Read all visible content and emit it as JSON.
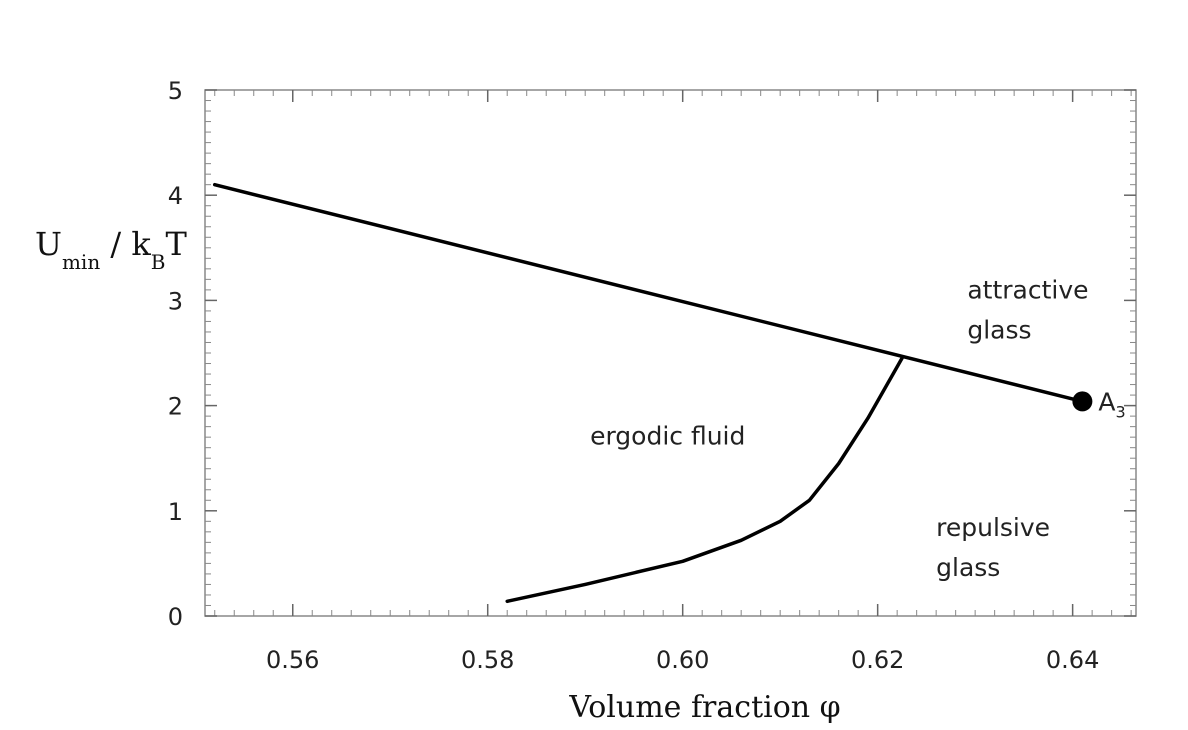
{
  "chart_data": {
    "type": "line",
    "xlabel": "Volume fraction φ",
    "ylabel": {
      "parts": [
        "U",
        "min",
        " / k",
        "B",
        "T"
      ]
    },
    "xlim": [
      0.551,
      0.6465
    ],
    "ylim": [
      0,
      5
    ],
    "xticks": [
      0.56,
      0.58,
      0.6,
      0.62,
      0.64
    ],
    "xtick_labels": [
      "0.56",
      "0.58",
      "0.60",
      "0.62",
      "0.64"
    ],
    "yticks": [
      0,
      1,
      2,
      3,
      4,
      5
    ],
    "ytick_labels": [
      "0",
      "1",
      "2",
      "3",
      "4",
      "5"
    ],
    "grid": false,
    "series": [
      {
        "points": [
          [
            0.552,
            4.1
          ],
          [
            0.641,
            2.04
          ]
        ]
      },
      {
        "points": [
          [
            0.582,
            0.14
          ],
          [
            0.59,
            0.3
          ],
          [
            0.6,
            0.52
          ],
          [
            0.606,
            0.72
          ],
          [
            0.61,
            0.9
          ],
          [
            0.613,
            1.1
          ],
          [
            0.616,
            1.45
          ],
          [
            0.619,
            1.88
          ],
          [
            0.6225,
            2.45
          ]
        ]
      }
    ],
    "marker": {
      "label": "A",
      "sub": "3",
      "x": 0.641,
      "y": 2.04
    },
    "annotations": [
      {
        "lines": [
          "attractive",
          "glass"
        ],
        "x": 0.6292,
        "y": 3.02
      },
      {
        "lines": [
          "ergodic fluid"
        ],
        "x": 0.5905,
        "y": 1.63
      },
      {
        "lines": [
          "repulsive",
          "glass"
        ],
        "x": 0.626,
        "y": 0.76
      }
    ]
  }
}
